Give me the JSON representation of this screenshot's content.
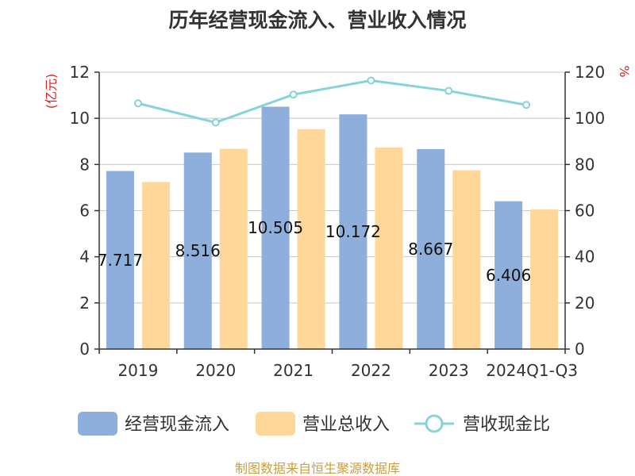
{
  "title": "历年经营现金流入、营业收入情况",
  "source": "制图数据来自恒生聚源数据库",
  "units": {
    "left": "(亿元)",
    "right": "%"
  },
  "colors": {
    "cash_inflow": "#8eaedb",
    "revenue": "#ffd899",
    "ratio": "#86d3d9",
    "grid": "#c8c8c8",
    "axis": "#333333",
    "unit": "#e02020",
    "source": "#c8a040"
  },
  "chart_data": {
    "type": "bar",
    "categories": [
      "2019",
      "2020",
      "2021",
      "2022",
      "2023",
      "2024Q1-Q3"
    ],
    "series": [
      {
        "name": "经营现金流入",
        "axis": "left",
        "values": [
          7.717,
          8.516,
          10.505,
          10.172,
          8.667,
          6.406
        ],
        "labels": [
          "7.717",
          "8.516",
          "10.505",
          "10.172",
          "8.667",
          "6.406"
        ]
      },
      {
        "name": "营业总收入",
        "axis": "left",
        "values": [
          7.24,
          8.68,
          9.53,
          8.74,
          7.75,
          6.05
        ]
      },
      {
        "name": "营收现金比",
        "axis": "right",
        "type": "line",
        "values": [
          106.5,
          98.2,
          110.3,
          116.4,
          111.9,
          105.8
        ]
      }
    ],
    "yleft": {
      "ylim": [
        0,
        12
      ],
      "ticks": [
        "0",
        "2",
        "4",
        "6",
        "8",
        "10",
        "12"
      ]
    },
    "yright": {
      "ylim": [
        0,
        120
      ],
      "ticks": [
        "0",
        "20",
        "40",
        "60",
        "80",
        "100",
        "120"
      ]
    },
    "grid": true,
    "legend": "bottom"
  }
}
